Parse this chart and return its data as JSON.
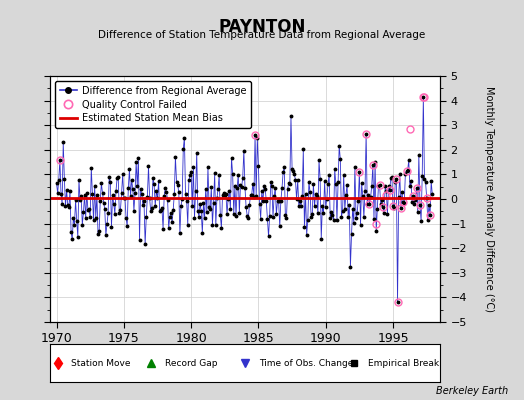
{
  "title": "PAYNTON",
  "subtitle": "Difference of Station Temperature Data from Regional Average",
  "ylabel": "Monthly Temperature Anomaly Difference (°C)",
  "xlabel_ticks": [
    1970,
    1975,
    1980,
    1985,
    1990,
    1995
  ],
  "ylim": [
    -5,
    5
  ],
  "xlim": [
    1969.5,
    1998.5
  ],
  "bias_value": 0.05,
  "background_color": "#d8d8d8",
  "plot_bg_color": "#ffffff",
  "line_color": "#3333cc",
  "bias_color": "#dd0000",
  "qc_color": "#ff69b4",
  "grid_color": "#cccccc",
  "berkeley_earth_text": "Berkeley Earth",
  "seed": 42,
  "n_months": 336,
  "start_year": 1970.0
}
